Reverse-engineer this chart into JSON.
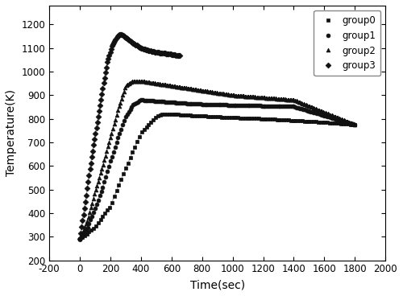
{
  "xlabel": "Time(sec)",
  "ylabel": "Temperature(K)",
  "xlim": [
    -200,
    2000
  ],
  "ylim": [
    200,
    1280
  ],
  "xticks": [
    -200,
    0,
    200,
    400,
    600,
    800,
    1000,
    1200,
    1400,
    1600,
    1800,
    2000
  ],
  "yticks": [
    200,
    300,
    400,
    500,
    600,
    700,
    800,
    900,
    1000,
    1100,
    1200
  ],
  "legend_labels": [
    "group0",
    "group1",
    "group2",
    "group3"
  ],
  "markers": [
    "s",
    "o",
    "^",
    "D"
  ],
  "line_color": "#aaaaaa",
  "marker_color": "#111111",
  "markersize": 3.5,
  "linewidth": 0.9,
  "group0_knots_x": [
    0,
    100,
    200,
    300,
    400,
    500,
    550,
    600,
    700,
    800,
    1000,
    1200,
    1400,
    1600,
    1800
  ],
  "group0_knots_y": [
    290,
    340,
    430,
    590,
    740,
    810,
    820,
    820,
    815,
    812,
    805,
    800,
    793,
    785,
    775
  ],
  "group1_knots_x": [
    0,
    50,
    100,
    150,
    200,
    250,
    300,
    350,
    400,
    500,
    600,
    700,
    800,
    1000,
    1400,
    1800
  ],
  "group1_knots_y": [
    290,
    340,
    420,
    510,
    620,
    720,
    810,
    860,
    880,
    875,
    870,
    865,
    862,
    858,
    852,
    775
  ],
  "group2_knots_x": [
    0,
    50,
    100,
    150,
    200,
    250,
    300,
    350,
    400,
    500,
    600,
    800,
    1000,
    1400,
    1800
  ],
  "group2_knots_y": [
    290,
    370,
    490,
    600,
    720,
    840,
    940,
    960,
    960,
    950,
    940,
    920,
    900,
    880,
    775
  ],
  "group3_knots_x": [
    0,
    30,
    60,
    90,
    120,
    150,
    180,
    210,
    240,
    260,
    280,
    300,
    350,
    400,
    450,
    500,
    550,
    600,
    650
  ],
  "group3_knots_y": [
    290,
    420,
    560,
    690,
    810,
    930,
    1040,
    1110,
    1145,
    1158,
    1155,
    1145,
    1120,
    1100,
    1090,
    1082,
    1078,
    1073,
    1068
  ]
}
